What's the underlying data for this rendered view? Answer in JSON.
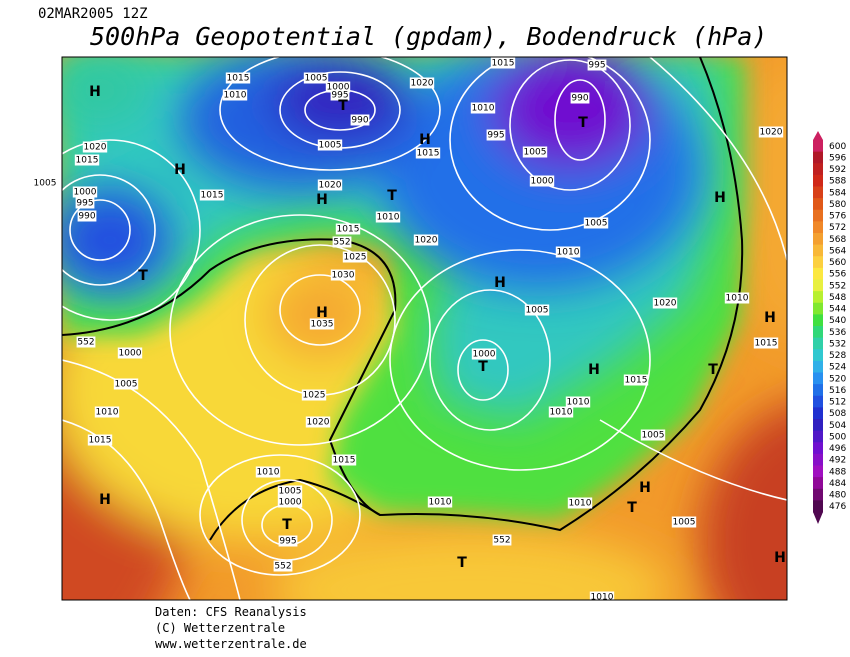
{
  "header": {
    "date": "02MAR2005 12Z",
    "title": "500hPa Geopotential (gpdam), Bodendruck (hPa)"
  },
  "footer": [
    "Daten: CFS Reanalysis",
    "(C) Wetterzentrale",
    "www.wetterzentrale.de"
  ],
  "colorbar": {
    "levels": [
      600,
      596,
      592,
      588,
      584,
      580,
      576,
      572,
      568,
      564,
      560,
      556,
      552,
      548,
      544,
      540,
      536,
      532,
      528,
      524,
      520,
      516,
      512,
      508,
      504,
      500,
      496,
      492,
      488,
      484,
      480,
      476
    ],
    "colors": [
      "#cc2060",
      "#b01828",
      "#c02020",
      "#d02818",
      "#d84018",
      "#e05818",
      "#e87020",
      "#f08828",
      "#f4a030",
      "#f8b838",
      "#fcd040",
      "#fce840",
      "#e8f040",
      "#b8f030",
      "#80e830",
      "#40e040",
      "#30d878",
      "#30d0a8",
      "#30c8d0",
      "#30b0e8",
      "#2890f0",
      "#2070e8",
      "#2050e0",
      "#2030d0",
      "#3020c0",
      "#5018c8",
      "#7010d0",
      "#8810c8",
      "#a010c0",
      "#900898",
      "#700870",
      "#500850"
    ]
  },
  "map_labels": [
    "H",
    "1015",
    "1010",
    "1005",
    "1000",
    "995",
    "T",
    "990",
    "1005",
    "H",
    "1015",
    "1020",
    "1015",
    "995",
    "990",
    "T",
    "1010",
    "995",
    "1005",
    "1000",
    "1005",
    "1010",
    "1020",
    "H",
    "H",
    "1020",
    "1015",
    "1005",
    "1000",
    "995",
    "990",
    "T",
    "1015",
    "1020",
    "H",
    "T",
    "1010",
    "1015",
    "552",
    "1025",
    "1020",
    "1030",
    "H",
    "1035",
    "H",
    "1005",
    "1000",
    "T",
    "1020",
    "1010",
    "H",
    "1015",
    "H",
    "T",
    "1015",
    "1010",
    "1010",
    "1005",
    "552",
    "1000",
    "1005",
    "1010",
    "1015",
    "1025",
    "1020",
    "1015",
    "1010",
    "1005",
    "1000",
    "T",
    "995",
    "552",
    "H",
    "H",
    "T",
    "1005",
    "1010",
    "1010",
    "552",
    "T",
    "H",
    "1010"
  ]
}
